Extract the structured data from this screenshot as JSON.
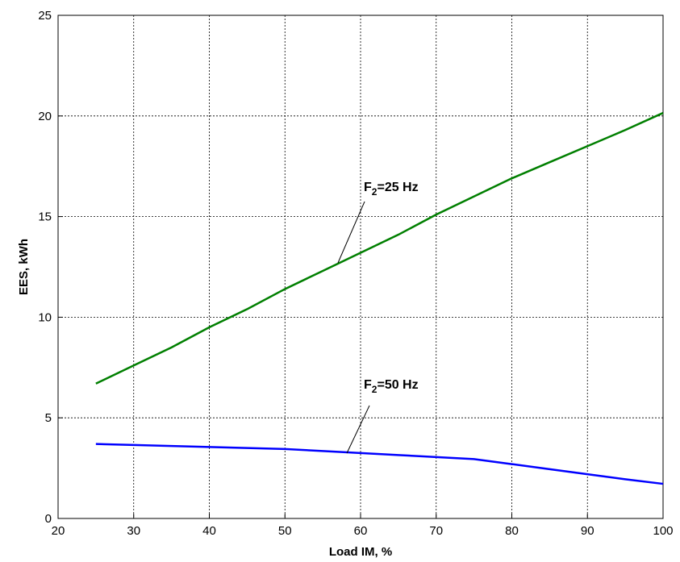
{
  "chart_data": {
    "type": "line",
    "xlabel": "Load IM, %",
    "ylabel": "EES, kWh",
    "x": [
      25,
      30,
      35,
      40,
      45,
      50,
      55,
      60,
      65,
      70,
      75,
      80,
      85,
      90,
      95,
      100
    ],
    "series": [
      {
        "color": "#007f00",
        "values": [
          6.7,
          7.6,
          8.5,
          9.5,
          10.4,
          11.4,
          12.3,
          13.2,
          14.1,
          15.1,
          16.0,
          16.9,
          17.7,
          18.5,
          19.3,
          20.15
        ]
      },
      {
        "color": "#0000ff",
        "values": [
          3.7,
          3.65,
          3.6,
          3.55,
          3.5,
          3.45,
          3.35,
          3.25,
          3.15,
          3.05,
          2.95,
          2.7,
          2.45,
          2.2,
          1.95,
          1.72
        ]
      }
    ],
    "annotations": [
      {
        "text": "F",
        "subscript": "2",
        "suffix": "=25 Hz"
      },
      {
        "text": "F",
        "subscript": "2",
        "suffix": "=50 Hz"
      }
    ],
    "xlim": [
      20,
      100
    ],
    "xticks": [
      20,
      30,
      40,
      50,
      60,
      70,
      80,
      90,
      100
    ],
    "ylim": [
      0,
      25
    ],
    "yticks": [
      0,
      5,
      10,
      15,
      20,
      25
    ],
    "grid": true
  }
}
